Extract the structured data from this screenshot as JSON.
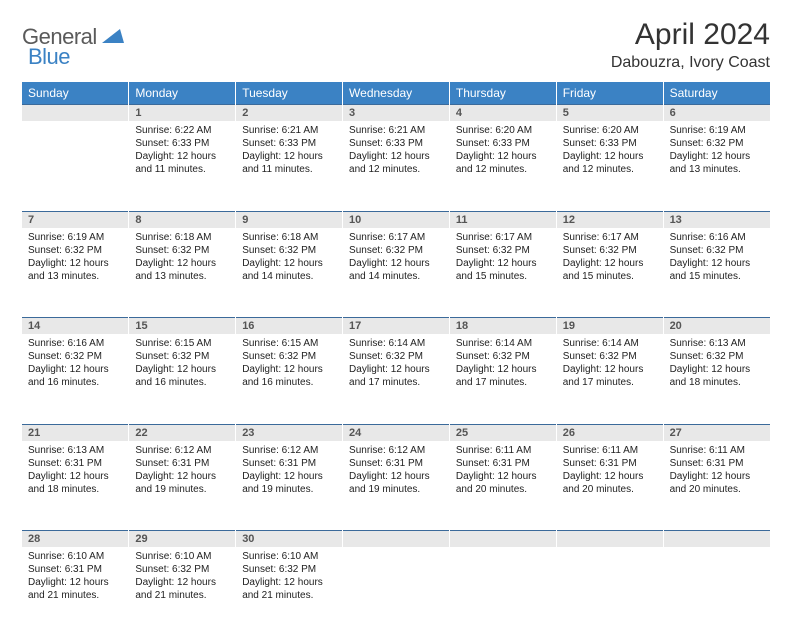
{
  "logo": {
    "part1": "General",
    "part2": "Blue"
  },
  "title": "April 2024",
  "location": "Dabouzra, Ivory Coast",
  "colors": {
    "header_bg": "#3b82c4",
    "header_fg": "#ffffff",
    "daynum_bg": "#e8e8e8",
    "daynum_fg": "#555555",
    "rule": "#3b6a9a",
    "logo_gray": "#5a5a5a",
    "logo_blue": "#3b82c4"
  },
  "dayHeaders": [
    "Sunday",
    "Monday",
    "Tuesday",
    "Wednesday",
    "Thursday",
    "Friday",
    "Saturday"
  ],
  "weeks": [
    [
      null,
      {
        "n": "1",
        "sr": "Sunrise: 6:22 AM",
        "ss": "Sunset: 6:33 PM",
        "dl": "Daylight: 12 hours and 11 minutes."
      },
      {
        "n": "2",
        "sr": "Sunrise: 6:21 AM",
        "ss": "Sunset: 6:33 PM",
        "dl": "Daylight: 12 hours and 11 minutes."
      },
      {
        "n": "3",
        "sr": "Sunrise: 6:21 AM",
        "ss": "Sunset: 6:33 PM",
        "dl": "Daylight: 12 hours and 12 minutes."
      },
      {
        "n": "4",
        "sr": "Sunrise: 6:20 AM",
        "ss": "Sunset: 6:33 PM",
        "dl": "Daylight: 12 hours and 12 minutes."
      },
      {
        "n": "5",
        "sr": "Sunrise: 6:20 AM",
        "ss": "Sunset: 6:33 PM",
        "dl": "Daylight: 12 hours and 12 minutes."
      },
      {
        "n": "6",
        "sr": "Sunrise: 6:19 AM",
        "ss": "Sunset: 6:32 PM",
        "dl": "Daylight: 12 hours and 13 minutes."
      }
    ],
    [
      {
        "n": "7",
        "sr": "Sunrise: 6:19 AM",
        "ss": "Sunset: 6:32 PM",
        "dl": "Daylight: 12 hours and 13 minutes."
      },
      {
        "n": "8",
        "sr": "Sunrise: 6:18 AM",
        "ss": "Sunset: 6:32 PM",
        "dl": "Daylight: 12 hours and 13 minutes."
      },
      {
        "n": "9",
        "sr": "Sunrise: 6:18 AM",
        "ss": "Sunset: 6:32 PM",
        "dl": "Daylight: 12 hours and 14 minutes."
      },
      {
        "n": "10",
        "sr": "Sunrise: 6:17 AM",
        "ss": "Sunset: 6:32 PM",
        "dl": "Daylight: 12 hours and 14 minutes."
      },
      {
        "n": "11",
        "sr": "Sunrise: 6:17 AM",
        "ss": "Sunset: 6:32 PM",
        "dl": "Daylight: 12 hours and 15 minutes."
      },
      {
        "n": "12",
        "sr": "Sunrise: 6:17 AM",
        "ss": "Sunset: 6:32 PM",
        "dl": "Daylight: 12 hours and 15 minutes."
      },
      {
        "n": "13",
        "sr": "Sunrise: 6:16 AM",
        "ss": "Sunset: 6:32 PM",
        "dl": "Daylight: 12 hours and 15 minutes."
      }
    ],
    [
      {
        "n": "14",
        "sr": "Sunrise: 6:16 AM",
        "ss": "Sunset: 6:32 PM",
        "dl": "Daylight: 12 hours and 16 minutes."
      },
      {
        "n": "15",
        "sr": "Sunrise: 6:15 AM",
        "ss": "Sunset: 6:32 PM",
        "dl": "Daylight: 12 hours and 16 minutes."
      },
      {
        "n": "16",
        "sr": "Sunrise: 6:15 AM",
        "ss": "Sunset: 6:32 PM",
        "dl": "Daylight: 12 hours and 16 minutes."
      },
      {
        "n": "17",
        "sr": "Sunrise: 6:14 AM",
        "ss": "Sunset: 6:32 PM",
        "dl": "Daylight: 12 hours and 17 minutes."
      },
      {
        "n": "18",
        "sr": "Sunrise: 6:14 AM",
        "ss": "Sunset: 6:32 PM",
        "dl": "Daylight: 12 hours and 17 minutes."
      },
      {
        "n": "19",
        "sr": "Sunrise: 6:14 AM",
        "ss": "Sunset: 6:32 PM",
        "dl": "Daylight: 12 hours and 17 minutes."
      },
      {
        "n": "20",
        "sr": "Sunrise: 6:13 AM",
        "ss": "Sunset: 6:32 PM",
        "dl": "Daylight: 12 hours and 18 minutes."
      }
    ],
    [
      {
        "n": "21",
        "sr": "Sunrise: 6:13 AM",
        "ss": "Sunset: 6:31 PM",
        "dl": "Daylight: 12 hours and 18 minutes."
      },
      {
        "n": "22",
        "sr": "Sunrise: 6:12 AM",
        "ss": "Sunset: 6:31 PM",
        "dl": "Daylight: 12 hours and 19 minutes."
      },
      {
        "n": "23",
        "sr": "Sunrise: 6:12 AM",
        "ss": "Sunset: 6:31 PM",
        "dl": "Daylight: 12 hours and 19 minutes."
      },
      {
        "n": "24",
        "sr": "Sunrise: 6:12 AM",
        "ss": "Sunset: 6:31 PM",
        "dl": "Daylight: 12 hours and 19 minutes."
      },
      {
        "n": "25",
        "sr": "Sunrise: 6:11 AM",
        "ss": "Sunset: 6:31 PM",
        "dl": "Daylight: 12 hours and 20 minutes."
      },
      {
        "n": "26",
        "sr": "Sunrise: 6:11 AM",
        "ss": "Sunset: 6:31 PM",
        "dl": "Daylight: 12 hours and 20 minutes."
      },
      {
        "n": "27",
        "sr": "Sunrise: 6:11 AM",
        "ss": "Sunset: 6:31 PM",
        "dl": "Daylight: 12 hours and 20 minutes."
      }
    ],
    [
      {
        "n": "28",
        "sr": "Sunrise: 6:10 AM",
        "ss": "Sunset: 6:31 PM",
        "dl": "Daylight: 12 hours and 21 minutes."
      },
      {
        "n": "29",
        "sr": "Sunrise: 6:10 AM",
        "ss": "Sunset: 6:32 PM",
        "dl": "Daylight: 12 hours and 21 minutes."
      },
      {
        "n": "30",
        "sr": "Sunrise: 6:10 AM",
        "ss": "Sunset: 6:32 PM",
        "dl": "Daylight: 12 hours and 21 minutes."
      },
      null,
      null,
      null,
      null
    ]
  ]
}
